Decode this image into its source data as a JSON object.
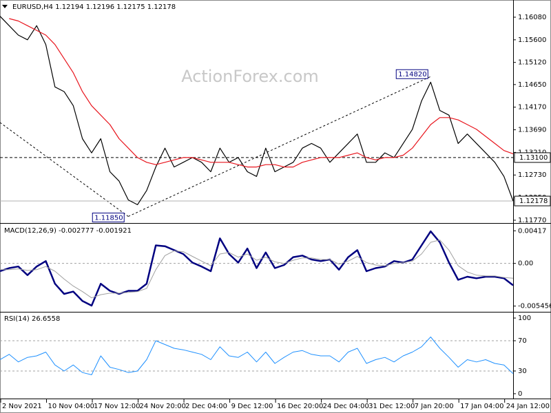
{
  "chart_data": [
    {
      "type": "line",
      "title": "EURUSD,H4  1.12194 1.12196 1.12175 1.12178",
      "watermark": "ActionForex.com",
      "x": [
        0,
        1,
        2,
        3,
        4,
        5,
        6,
        7,
        8,
        9,
        10,
        11,
        12,
        13,
        14,
        15,
        16,
        17,
        18,
        19,
        20,
        21,
        22,
        23,
        24,
        25,
        26,
        27,
        28,
        29,
        30,
        31,
        32,
        33,
        34,
        35,
        36,
        37,
        38,
        39,
        40,
        41,
        42,
        43,
        44,
        45,
        46,
        47,
        48,
        49,
        50,
        51,
        52,
        53,
        54,
        55,
        56
      ],
      "xlim": [
        0,
        56
      ],
      "ylim": [
        1.1174,
        1.16445
      ],
      "yticks": [
        {
          "value": 1.1608,
          "label": "1.16080"
        },
        {
          "value": 1.156,
          "label": "1.15600"
        },
        {
          "value": 1.1512,
          "label": "1.15120"
        },
        {
          "value": 1.1465,
          "label": "1.14650"
        },
        {
          "value": 1.1417,
          "label": "1.14170"
        },
        {
          "value": 1.1369,
          "label": "1.13690"
        },
        {
          "value": 1.1321,
          "label": "1.13210"
        },
        {
          "value": 1.1273,
          "label": "1.12730"
        },
        {
          "value": 1.1225,
          "label": "1.12250"
        },
        {
          "value": 1.1177,
          "label": "1.11770"
        }
      ],
      "series": [
        {
          "color": "#000000",
          "values": [
            1.161,
            1.159,
            1.157,
            1.156,
            1.159,
            1.155,
            1.146,
            1.145,
            1.142,
            1.135,
            1.132,
            1.135,
            1.128,
            1.126,
            1.122,
            1.121,
            1.124,
            1.129,
            1.133,
            1.129,
            1.13,
            1.131,
            1.13,
            1.128,
            1.133,
            1.13,
            1.131,
            1.128,
            1.127,
            1.133,
            1.128,
            1.129,
            1.13,
            1.133,
            1.134,
            1.133,
            1.13,
            1.132,
            1.134,
            1.136,
            1.13,
            1.13,
            1.132,
            1.131,
            1.134,
            1.137,
            1.143,
            1.147,
            1.141,
            1.14,
            1.134,
            1.136,
            1.134,
            1.132,
            1.13,
            1.127,
            1.12178
          ]
        },
        {
          "color": "#e8141c",
          "values": [
            null,
            1.1605,
            1.16,
            1.159,
            1.158,
            1.157,
            1.155,
            1.152,
            1.149,
            1.145,
            1.142,
            1.14,
            1.138,
            1.135,
            1.133,
            1.131,
            1.13,
            1.1295,
            1.13,
            1.1305,
            1.131,
            1.131,
            1.1305,
            1.13,
            1.13,
            1.13,
            1.1295,
            1.129,
            1.129,
            1.1295,
            1.1295,
            1.129,
            1.129,
            1.13,
            1.1305,
            1.131,
            1.131,
            1.131,
            1.1315,
            1.132,
            1.131,
            1.1305,
            1.131,
            1.131,
            1.1315,
            1.133,
            1.1355,
            1.138,
            1.1395,
            1.1395,
            1.139,
            1.138,
            1.137,
            1.1355,
            1.134,
            1.1325,
            1.1318
          ]
        }
      ],
      "annotations": [
        {
          "x": 14,
          "value": 1.1185,
          "label": "1.11850"
        },
        {
          "x": 47,
          "value": 1.1482,
          "label": "1.14820"
        }
      ],
      "hlines": [
        {
          "value": 1.131,
          "label": "1.13100",
          "color": "#000000"
        },
        {
          "value": 1.12178,
          "label": "1.12178",
          "color": "#b0b0b0"
        }
      ]
    },
    {
      "type": "line",
      "title": "MACD(12,26,9) -0.002777 -0.001921",
      "x": [
        0,
        1,
        2,
        3,
        4,
        5,
        6,
        7,
        8,
        9,
        10,
        11,
        12,
        13,
        14,
        15,
        16,
        17,
        18,
        19,
        20,
        21,
        22,
        23,
        24,
        25,
        26,
        27,
        28,
        29,
        30,
        31,
        32,
        33,
        34,
        35,
        36,
        37,
        38,
        39,
        40,
        41,
        42,
        43,
        44,
        45,
        46,
        47,
        48,
        49,
        50,
        51,
        52,
        53,
        54,
        55,
        56
      ],
      "xlim": [
        0,
        56
      ],
      "ylim": [
        -0.0061,
        0.0049
      ],
      "yticks": [
        {
          "value": 0.00417,
          "label": "0.00417"
        },
        {
          "value": 0,
          "label": "0.00"
        },
        {
          "value": -0.005456,
          "label": "-0.005456"
        }
      ],
      "levels": [
        0
      ],
      "series": [
        {
          "color": "#000080",
          "width": 2.5,
          "values": [
            -0.001,
            -0.0006,
            -0.0004,
            -0.0015,
            -0.0004,
            0.0003,
            -0.0026,
            -0.0039,
            -0.0036,
            -0.0048,
            -0.0054,
            -0.0026,
            -0.0035,
            -0.0039,
            -0.0035,
            -0.0035,
            -0.0026,
            0.0023,
            0.0022,
            0.0017,
            0.0012,
            0.0001,
            -0.0004,
            -0.001,
            0.0032,
            0.0012,
            0.0001,
            0.0019,
            -0.0006,
            0.0014,
            -0.0006,
            -0.0002,
            0.0008,
            0.001,
            0.0005,
            0.0003,
            0.0005,
            -0.0008,
            0.0008,
            0.0017,
            -0.001,
            -0.0006,
            -0.0004,
            0.0003,
            0.0001,
            0.0005,
            0.0023,
            0.0041,
            0.0027,
            0.0001,
            -0.0021,
            -0.0017,
            -0.0019,
            -0.0017,
            -0.0017,
            -0.0019,
            -0.0028
          ]
        },
        {
          "color": "#a0a0a0",
          "width": 1,
          "values": [
            -0.0008,
            -0.0008,
            -0.0007,
            -0.0009,
            -0.0008,
            -0.0004,
            -0.001,
            -0.002,
            -0.0029,
            -0.0036,
            -0.0044,
            -0.004,
            -0.0038,
            -0.0038,
            -0.0037,
            -0.0036,
            -0.0032,
            -0.0008,
            0.001,
            0.0016,
            0.0015,
            0.0009,
            0.0003,
            -0.0003,
            0.0012,
            0.0014,
            0.0008,
            0.0012,
            0.0004,
            0.0008,
            0.0002,
            0,
            0.0004,
            0.0007,
            0.0007,
            0.0005,
            0.0005,
            -0.0001,
            0.0003,
            0.0009,
            0.0001,
            -0.0002,
            -0.0003,
            0,
            0.0001,
            0.0003,
            0.0012,
            0.0027,
            0.003,
            0.0017,
            -0.0003,
            -0.0011,
            -0.0015,
            -0.0016,
            -0.0016,
            -0.0018,
            -0.0019
          ]
        }
      ]
    },
    {
      "type": "line",
      "title": "RSI(14) 26.6558",
      "x": [
        0,
        1,
        2,
        3,
        4,
        5,
        6,
        7,
        8,
        9,
        10,
        11,
        12,
        13,
        14,
        15,
        16,
        17,
        18,
        19,
        20,
        21,
        22,
        23,
        24,
        25,
        26,
        27,
        28,
        29,
        30,
        31,
        32,
        33,
        34,
        35,
        36,
        37,
        38,
        39,
        40,
        41,
        42,
        43,
        44,
        45,
        46,
        47,
        48,
        49,
        50,
        51,
        52,
        53,
        54,
        55,
        56
      ],
      "xlim": [
        0,
        56
      ],
      "xticks": [
        {
          "value": 0,
          "label": "2 Nov 2021"
        },
        {
          "value": 5,
          "label": "10 Nov 04:00"
        },
        {
          "value": 10,
          "label": "17 Nov 12:00"
        },
        {
          "value": 15,
          "label": "24 Nov 20:00"
        },
        {
          "value": 20,
          "label": "2 Dec 04:00"
        },
        {
          "value": 25,
          "label": "9 Dec 12:00"
        },
        {
          "value": 30,
          "label": "16 Dec 20:00"
        },
        {
          "value": 35,
          "label": "24 Dec 04:00"
        },
        {
          "value": 40,
          "label": "31 Dec 12:00"
        },
        {
          "value": 45,
          "label": "7 Jan 20:00"
        },
        {
          "value": 50,
          "label": "17 Jan 04:00"
        },
        {
          "value": 55,
          "label": "24 Jan 12:00"
        }
      ],
      "ylim": [
        -5.5,
        106.4
      ],
      "yticks": [
        100,
        70,
        30,
        0
      ],
      "levels": [
        70,
        30
      ],
      "series": [
        {
          "color": "#1e90ff",
          "width": 1,
          "values": [
            45,
            52,
            42,
            48,
            50,
            55,
            38,
            30,
            38,
            28,
            25,
            50,
            35,
            32,
            28,
            30,
            45,
            70,
            65,
            60,
            58,
            55,
            52,
            45,
            62,
            50,
            48,
            55,
            42,
            55,
            40,
            48,
            55,
            57,
            52,
            50,
            50,
            42,
            55,
            60,
            40,
            45,
            48,
            42,
            50,
            55,
            62,
            75,
            60,
            48,
            35,
            45,
            42,
            45,
            40,
            38,
            26.6558
          ]
        }
      ]
    }
  ]
}
